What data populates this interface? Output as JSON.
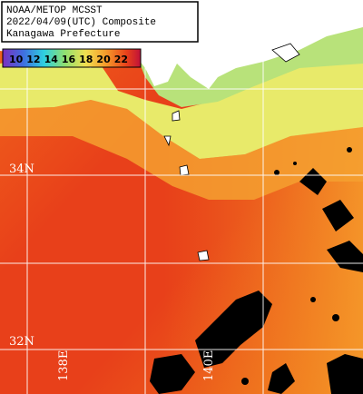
{
  "header": {
    "lines": [
      "NOAA/METOP MCSST",
      "2022/04/09(UTC) Composite",
      "Kanagawa Prefecture"
    ]
  },
  "colorbar": {
    "labels": [
      10,
      12,
      14,
      16,
      18,
      20,
      22
    ]
  },
  "latitude_labels": [
    "34N",
    "32N"
  ],
  "longitude_labels": [
    "138E",
    "140E"
  ]
}
